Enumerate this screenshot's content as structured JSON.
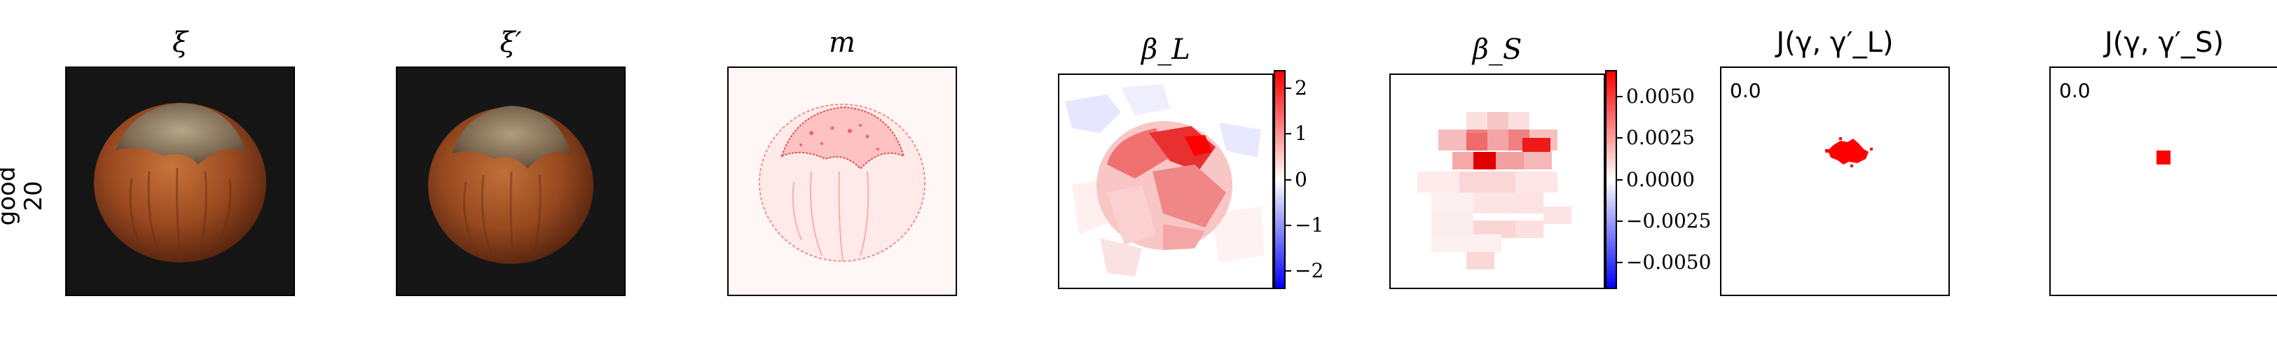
{
  "figure": {
    "row_label": "good\n20",
    "columns": [
      {
        "key": "xi",
        "title": "ξ",
        "kind": "image"
      },
      {
        "key": "xi_prime",
        "title": "ξ′",
        "kind": "image"
      },
      {
        "key": "m",
        "title": "m",
        "kind": "heatmap"
      },
      {
        "key": "beta_L",
        "title": "β_L",
        "kind": "heatmap"
      },
      {
        "key": "beta_S",
        "title": "β_S",
        "kind": "heatmap"
      },
      {
        "key": "J_L",
        "title": "J(γ, γ′_L)",
        "kind": "mask",
        "corner_text": "0.0"
      },
      {
        "key": "J_S",
        "title": "J(γ, γ′_S)",
        "kind": "mask",
        "corner_text": "0.0"
      }
    ]
  },
  "colors": {
    "red": "#ff0000",
    "blue": "#0000ff",
    "background": "#ffffff",
    "photo_bg": "#151515",
    "nut_body": "#9b4a20",
    "nut_cap": "#8a7a62"
  },
  "chart_data": [
    {
      "type": "heatmap",
      "title": "β_L",
      "colormap": "bwr",
      "colorbar": {
        "ticks": [
          "2",
          "1",
          "0",
          "−1",
          "−2"
        ],
        "values": [
          2,
          1,
          0,
          -1,
          -2
        ],
        "range": [
          -2.4,
          2.4
        ]
      }
    },
    {
      "type": "heatmap",
      "title": "β_S",
      "colormap": "bwr",
      "colorbar": {
        "ticks": [
          "0.0050",
          "0.0025",
          "0.0000",
          "−0.0025",
          "−0.0050"
        ],
        "values": [
          0.005,
          0.0025,
          0,
          -0.0025,
          -0.005
        ],
        "range": [
          -0.0066,
          0.0066
        ]
      }
    }
  ]
}
